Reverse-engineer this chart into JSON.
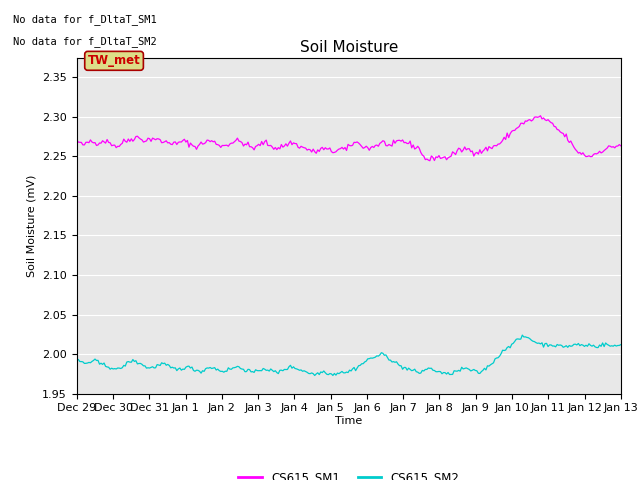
{
  "title": "Soil Moisture",
  "ylabel": "Soil Moisture (mV)",
  "xlabel": "Time",
  "ylim": [
    1.95,
    2.375
  ],
  "yticks": [
    1.95,
    2.0,
    2.05,
    2.1,
    2.15,
    2.2,
    2.25,
    2.3,
    2.35
  ],
  "xtick_labels": [
    "Dec 29",
    "Dec 30",
    "Dec 31",
    "Jan 1",
    "Jan 2",
    "Jan 3",
    "Jan 4",
    "Jan 5",
    "Jan 6",
    "Jan 7",
    "Jan 8",
    "Jan 9",
    "Jan 10",
    "Jan 11",
    "Jan 12",
    "Jan 13"
  ],
  "no_data_text1": "No data for f_DltaT_SM1",
  "no_data_text2": "No data for f_DltaT_SM2",
  "tw_met_label": "TW_met",
  "legend_entries": [
    "CS615_SM1",
    "CS615_SM2"
  ],
  "color_sm1": "#FF00FF",
  "color_sm2": "#00CCCC",
  "background_color": "#E8E8E8",
  "grid_color": "#FFFFFF",
  "tw_met_bg": "#DDDD88",
  "tw_met_text": "#CC0000",
  "title_fontsize": 11,
  "label_fontsize": 8,
  "tick_fontsize": 8,
  "sm1_base": [
    2.27,
    2.265,
    2.265,
    2.27,
    2.267,
    2.268,
    2.27,
    2.268,
    2.265,
    2.262,
    2.268,
    2.27,
    2.272,
    2.275,
    2.272,
    2.27,
    2.272,
    2.273,
    2.27,
    2.268,
    2.268,
    2.267,
    2.265,
    2.27,
    2.268,
    2.265,
    2.262,
    2.265,
    2.268,
    2.27,
    2.268,
    2.265,
    2.263,
    2.265,
    2.268,
    2.27,
    2.268,
    2.265,
    2.262,
    2.26,
    2.265,
    2.268,
    2.265,
    2.262,
    2.26,
    2.263,
    2.265,
    2.268,
    2.265,
    2.262,
    2.26,
    2.258,
    2.255,
    2.258,
    2.26,
    2.258,
    2.256,
    2.258,
    2.26,
    2.258,
    2.265,
    2.268,
    2.265,
    2.262,
    2.26,
    2.263,
    2.265,
    2.268,
    2.265,
    2.262,
    2.268,
    2.27,
    2.268,
    2.265,
    2.262,
    2.26,
    2.248,
    2.245,
    2.248,
    2.25,
    2.248,
    2.248,
    2.252,
    2.255,
    2.258,
    2.26,
    2.258,
    2.256,
    2.255,
    2.258,
    2.26,
    2.262,
    2.265,
    2.268,
    2.275,
    2.28,
    2.285,
    2.29,
    2.293,
    2.295,
    2.298,
    2.3,
    2.298,
    2.295,
    2.29,
    2.285,
    2.28,
    2.275,
    2.268,
    2.258,
    2.255,
    2.252,
    2.25,
    2.252,
    2.255,
    2.258,
    2.26,
    2.262,
    2.263,
    2.265
  ],
  "sm2_base": [
    1.992,
    1.99,
    1.988,
    1.99,
    1.992,
    1.988,
    1.986,
    1.984,
    1.982,
    1.98,
    1.984,
    1.988,
    1.992,
    1.99,
    1.988,
    1.984,
    1.982,
    1.984,
    1.986,
    1.988,
    1.984,
    1.982,
    1.98,
    1.982,
    1.984,
    1.982,
    1.98,
    1.978,
    1.98,
    1.984,
    1.982,
    1.98,
    1.978,
    1.98,
    1.982,
    1.984,
    1.982,
    1.98,
    1.978,
    1.976,
    1.98,
    1.982,
    1.98,
    1.978,
    1.976,
    1.98,
    1.982,
    1.984,
    1.982,
    1.98,
    1.978,
    1.976,
    1.974,
    1.976,
    1.978,
    1.976,
    1.974,
    1.976,
    1.978,
    1.976,
    1.98,
    1.982,
    1.986,
    1.99,
    1.994,
    1.996,
    1.998,
    2.0,
    1.996,
    1.992,
    1.988,
    1.984,
    1.982,
    1.98,
    1.978,
    1.976,
    1.98,
    1.982,
    1.98,
    1.978,
    1.976,
    1.974,
    1.976,
    1.978,
    1.98,
    1.982,
    1.98,
    1.978,
    1.976,
    1.98,
    1.984,
    1.99,
    1.996,
    2.002,
    2.008,
    2.012,
    2.016,
    2.02,
    2.022,
    2.02,
    2.016,
    2.014,
    2.012,
    2.012,
    2.012,
    2.01,
    2.01,
    2.01,
    2.01,
    2.012,
    2.012,
    2.01,
    2.012,
    2.01,
    2.01,
    2.012,
    2.012,
    2.01,
    2.01,
    2.012
  ]
}
